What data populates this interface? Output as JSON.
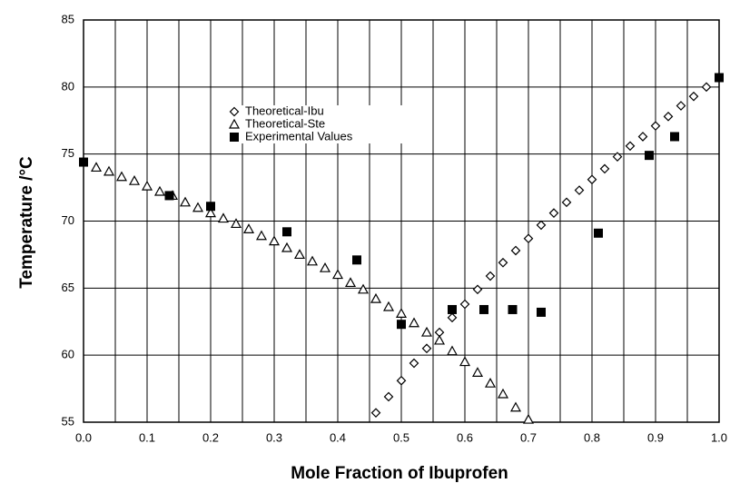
{
  "chart_data": {
    "type": "scatter",
    "xlabel": "Mole Fraction of Ibuprofen",
    "ylabel": "Temperature /°C",
    "xlim": [
      0,
      1
    ],
    "ylim": [
      55,
      85
    ],
    "xticks": [
      {
        "value": 0,
        "label": "0.0"
      },
      0.1,
      0.2,
      0.3,
      0.4,
      0.5,
      0.6,
      0.7,
      0.8,
      0.9,
      {
        "value": 1,
        "label": "1.0"
      }
    ],
    "minor_xticks": [
      0.05,
      0.15,
      0.25,
      0.35,
      0.45,
      0.55,
      0.65,
      0.75,
      0.85,
      0.95
    ],
    "yticks": [
      55,
      60,
      65,
      70,
      75,
      80,
      85
    ],
    "grid": true,
    "legend": "upper-left",
    "series": [
      {
        "name": "Theoretical-Ibu",
        "marker": "diamond",
        "color": "#000000",
        "x": [
          0.46,
          0.48,
          0.5,
          0.52,
          0.54,
          0.56,
          0.58,
          0.6,
          0.62,
          0.64,
          0.66,
          0.68,
          0.7,
          0.72,
          0.74,
          0.76,
          0.78,
          0.8,
          0.82,
          0.84,
          0.86,
          0.88,
          0.9,
          0.92,
          0.94,
          0.96,
          0.98
        ],
        "values": [
          55.7,
          56.9,
          58.1,
          59.4,
          60.5,
          61.7,
          62.8,
          63.8,
          64.9,
          65.9,
          66.9,
          67.8,
          68.7,
          69.7,
          70.6,
          71.4,
          72.3,
          73.1,
          73.9,
          74.8,
          75.6,
          76.3,
          77.1,
          77.8,
          78.6,
          79.3,
          80.0
        ]
      },
      {
        "name": "Theoretical-Ste",
        "marker": "triangle",
        "color": "#000000",
        "x": [
          0.02,
          0.04,
          0.06,
          0.08,
          0.1,
          0.12,
          0.14,
          0.16,
          0.18,
          0.2,
          0.22,
          0.24,
          0.26,
          0.28,
          0.3,
          0.32,
          0.34,
          0.36,
          0.38,
          0.4,
          0.42,
          0.44,
          0.46,
          0.48,
          0.5,
          0.52,
          0.54,
          0.56,
          0.58,
          0.6,
          0.62,
          0.64,
          0.66,
          0.68,
          0.7
        ],
        "values": [
          74.0,
          73.7,
          73.3,
          73.0,
          72.6,
          72.2,
          71.9,
          71.4,
          71.0,
          70.6,
          70.2,
          69.8,
          69.4,
          68.9,
          68.5,
          68.0,
          67.5,
          67.0,
          66.5,
          66.0,
          65.4,
          64.9,
          64.2,
          63.6,
          63.1,
          62.4,
          61.7,
          61.1,
          60.3,
          59.5,
          58.7,
          57.9,
          57.1,
          56.1,
          55.2
        ]
      },
      {
        "name": "Experimental Values",
        "marker": "square",
        "color": "#000000",
        "x": [
          0.0,
          0.135,
          0.2,
          0.32,
          0.43,
          0.5,
          0.58,
          0.63,
          0.675,
          0.72,
          0.81,
          0.89,
          0.93,
          1.0
        ],
        "values": [
          74.4,
          71.9,
          71.1,
          69.2,
          67.1,
          62.3,
          63.4,
          63.4,
          63.4,
          63.2,
          69.1,
          74.9,
          76.3,
          80.7
        ]
      }
    ]
  }
}
